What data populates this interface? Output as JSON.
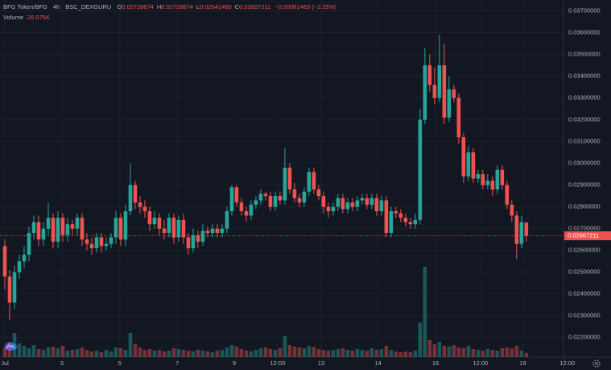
{
  "chart_data": {
    "type": "candlestick",
    "symbol": "BFG Token/BFG",
    "interval": "4h",
    "exchange": "BSC_DEXGURU",
    "ohlc_letters": [
      "O",
      "H",
      "L",
      "C"
    ],
    "last_labels": [
      "0.02728674",
      "0.02728674",
      "0.02641460",
      "0.02667211"
    ],
    "change_label": "−0.00061463 (−2.25%)",
    "up_color": "#26a69a",
    "down_color": "#ef5350",
    "grid": true,
    "ylim": [
      0.0211,
      0.0375
    ],
    "yticks": [
      {
        "value": 0.022,
        "label": "0.02200000"
      },
      {
        "value": 0.023,
        "label": "0.02300000"
      },
      {
        "value": 0.024,
        "label": "0.02400000"
      },
      {
        "value": 0.025,
        "label": "0.02500000"
      },
      {
        "value": 0.026,
        "label": "0.02600000"
      },
      {
        "value": 0.027,
        "label": "0.02700000"
      },
      {
        "value": 0.028,
        "label": "0.02800000"
      },
      {
        "value": 0.029,
        "label": "0.02900000"
      },
      {
        "value": 0.03,
        "label": "0.03000000"
      },
      {
        "value": 0.031,
        "label": "0.03100000"
      },
      {
        "value": 0.032,
        "label": "0.03200000"
      },
      {
        "value": 0.033,
        "label": "0.03300000"
      },
      {
        "value": 0.034,
        "label": "0.03400000"
      },
      {
        "value": 0.035,
        "label": "0.03500000"
      },
      {
        "value": 0.036,
        "label": "0.03600000"
      },
      {
        "value": 0.037,
        "label": "0.03700000"
      }
    ],
    "xlim": [
      -1,
      115.7
    ],
    "xticks": [
      {
        "value": 0,
        "label": "Jul"
      },
      {
        "value": 11.8,
        "label": "3"
      },
      {
        "value": 23.8,
        "label": "5"
      },
      {
        "value": 35.7,
        "label": "7"
      },
      {
        "value": 47.5,
        "label": "9"
      },
      {
        "value": 56.5,
        "label": "12:00"
      },
      {
        "value": 65.5,
        "label": "13"
      },
      {
        "value": 77.3,
        "label": "14"
      },
      {
        "value": 89.2,
        "label": "16"
      },
      {
        "value": 98.5,
        "label": "12:00"
      },
      {
        "value": 107.3,
        "label": "19"
      },
      {
        "value": 116.5,
        "label": "12:00"
      }
    ],
    "open": [
      0.0262,
      0.0248,
      0.0236,
      0.025,
      0.0255,
      0.0258,
      0.0268,
      0.0273,
      0.0265,
      0.027,
      0.0275,
      0.0264,
      0.0275,
      0.0267,
      0.0272,
      0.027,
      0.0275,
      0.0265,
      0.0263,
      0.0261,
      0.0266,
      0.0262,
      0.0263,
      0.0266,
      0.0275,
      0.0265,
      0.0278,
      0.029,
      0.0282,
      0.028,
      0.0278,
      0.0272,
      0.0275,
      0.027,
      0.0268,
      0.0275,
      0.0266,
      0.0274,
      0.0266,
      0.0261,
      0.0267,
      0.0264,
      0.0269,
      0.0268,
      0.027,
      0.0268,
      0.027,
      0.0278,
      0.0289,
      0.0282,
      0.0278,
      0.0276,
      0.0281,
      0.0283,
      0.0286,
      0.0285,
      0.028,
      0.0285,
      0.0283,
      0.0298,
      0.0288,
      0.0284,
      0.0282,
      0.0287,
      0.0296,
      0.0288,
      0.0285,
      0.028,
      0.0278,
      0.028,
      0.0284,
      0.0279,
      0.0282,
      0.028,
      0.0283,
      0.0284,
      0.0281,
      0.0284,
      0.0278,
      0.0283,
      0.0268,
      0.0278,
      0.0277,
      0.0275,
      0.0273,
      0.0272,
      0.0274,
      0.032,
      0.0345,
      0.0336,
      0.033,
      0.0345,
      0.0321,
      0.0334,
      0.033,
      0.0312,
      0.0294,
      0.0305,
      0.0293,
      0.0295,
      0.029,
      0.0292,
      0.0288,
      0.0297,
      0.029,
      0.0281,
      0.0276,
      0.0263,
      0.02728674
    ],
    "high": [
      0.0265,
      0.0251,
      0.0253,
      0.0258,
      0.0262,
      0.0271,
      0.0276,
      0.0276,
      0.0273,
      0.0282,
      0.0277,
      0.0278,
      0.0277,
      0.0275,
      0.0274,
      0.0277,
      0.0277,
      0.0268,
      0.0266,
      0.0268,
      0.0268,
      0.0266,
      0.0268,
      0.0278,
      0.0277,
      0.0281,
      0.03,
      0.0292,
      0.0285,
      0.0283,
      0.028,
      0.0278,
      0.0277,
      0.0274,
      0.0277,
      0.0277,
      0.0276,
      0.0277,
      0.0268,
      0.027,
      0.0269,
      0.0272,
      0.0271,
      0.0272,
      0.0272,
      0.0272,
      0.028,
      0.029,
      0.029,
      0.0284,
      0.028,
      0.0283,
      0.0285,
      0.0288,
      0.0287,
      0.0287,
      0.0287,
      0.0287,
      0.0307,
      0.03,
      0.0291,
      0.0286,
      0.0289,
      0.0298,
      0.0298,
      0.029,
      0.0287,
      0.0282,
      0.0282,
      0.0286,
      0.0286,
      0.0284,
      0.0284,
      0.0285,
      0.0286,
      0.0286,
      0.0286,
      0.0286,
      0.0285,
      0.0285,
      0.028,
      0.028,
      0.0279,
      0.0277,
      0.0275,
      0.0277,
      0.0325,
      0.0353,
      0.035,
      0.0344,
      0.0359,
      0.0355,
      0.034,
      0.0336,
      0.0332,
      0.0314,
      0.0308,
      0.0307,
      0.0297,
      0.0297,
      0.0295,
      0.0294,
      0.0299,
      0.0299,
      0.0292,
      0.0283,
      0.0278,
      0.0276,
      0.02728674
    ],
    "low": [
      0.0242,
      0.0228,
      0.0233,
      0.0247,
      0.0252,
      0.0255,
      0.0265,
      0.0262,
      0.0262,
      0.0267,
      0.0261,
      0.0261,
      0.0264,
      0.0264,
      0.0267,
      0.0267,
      0.0262,
      0.026,
      0.0258,
      0.0259,
      0.0259,
      0.026,
      0.0261,
      0.0263,
      0.0262,
      0.0262,
      0.0276,
      0.0279,
      0.0277,
      0.0275,
      0.0269,
      0.027,
      0.0267,
      0.0265,
      0.0266,
      0.0263,
      0.0264,
      0.0263,
      0.0258,
      0.0259,
      0.0261,
      0.0262,
      0.0266,
      0.0266,
      0.0266,
      0.0266,
      0.0268,
      0.0276,
      0.028,
      0.0276,
      0.0273,
      0.0274,
      0.0279,
      0.0281,
      0.0283,
      0.0278,
      0.0278,
      0.0281,
      0.0281,
      0.0286,
      0.0282,
      0.028,
      0.028,
      0.0285,
      0.0286,
      0.0283,
      0.0277,
      0.0275,
      0.0276,
      0.0278,
      0.0277,
      0.0277,
      0.0278,
      0.0278,
      0.0281,
      0.0279,
      0.0279,
      0.0276,
      0.0276,
      0.0266,
      0.0266,
      0.0275,
      0.0273,
      0.0271,
      0.027,
      0.027,
      0.0272,
      0.0318,
      0.0333,
      0.0327,
      0.0328,
      0.0318,
      0.0319,
      0.0328,
      0.0309,
      0.0291,
      0.0292,
      0.0291,
      0.0291,
      0.0288,
      0.0288,
      0.0285,
      0.0286,
      0.0288,
      0.0279,
      0.0273,
      0.0256,
      0.0261,
      0.0264146
    ],
    "close": [
      0.0248,
      0.0236,
      0.025,
      0.0255,
      0.0258,
      0.0268,
      0.0273,
      0.0265,
      0.027,
      0.0275,
      0.0264,
      0.0275,
      0.0267,
      0.0272,
      0.027,
      0.0275,
      0.0265,
      0.0263,
      0.0261,
      0.0266,
      0.0262,
      0.0263,
      0.0266,
      0.0275,
      0.0265,
      0.0278,
      0.029,
      0.0282,
      0.028,
      0.0278,
      0.0272,
      0.0275,
      0.027,
      0.0268,
      0.0275,
      0.0266,
      0.0274,
      0.0266,
      0.0261,
      0.0267,
      0.0264,
      0.0269,
      0.0268,
      0.027,
      0.0268,
      0.027,
      0.0278,
      0.0289,
      0.0282,
      0.0278,
      0.0276,
      0.0281,
      0.0283,
      0.0286,
      0.0285,
      0.028,
      0.0285,
      0.0283,
      0.0298,
      0.0288,
      0.0284,
      0.0282,
      0.0287,
      0.0296,
      0.0288,
      0.0285,
      0.028,
      0.0278,
      0.028,
      0.0284,
      0.0279,
      0.0282,
      0.028,
      0.0283,
      0.0284,
      0.0281,
      0.0284,
      0.0278,
      0.0283,
      0.0268,
      0.0278,
      0.0277,
      0.0275,
      0.0273,
      0.0272,
      0.0274,
      0.032,
      0.0345,
      0.0336,
      0.033,
      0.0345,
      0.0321,
      0.0334,
      0.033,
      0.0312,
      0.0294,
      0.0305,
      0.0293,
      0.0295,
      0.029,
      0.0292,
      0.0288,
      0.0297,
      0.029,
      0.0281,
      0.0276,
      0.0263,
      0.0273,
      0.02667211
    ],
    "volume": {
      "name": "Volume",
      "last_label": "26.075K",
      "vlim": [
        0,
        600000
      ],
      "values": [
        60000,
        95000,
        150000,
        85000,
        70000,
        55000,
        75000,
        50000,
        45000,
        60000,
        65000,
        55000,
        70000,
        40000,
        45000,
        50000,
        60000,
        45000,
        35000,
        40000,
        30000,
        45000,
        35000,
        60000,
        55000,
        45000,
        150000,
        80000,
        60000,
        45000,
        50000,
        40000,
        45000,
        35000,
        40000,
        55000,
        50000,
        45000,
        40000,
        35000,
        45000,
        40000,
        35000,
        30000,
        40000,
        45000,
        60000,
        75000,
        65000,
        50000,
        40000,
        35000,
        45000,
        55000,
        60000,
        50000,
        45000,
        55000,
        130000,
        75000,
        65000,
        60000,
        55000,
        70000,
        65000,
        50000,
        45000,
        40000,
        45000,
        50000,
        55000,
        45000,
        40000,
        50000,
        45000,
        40000,
        55000,
        45000,
        50000,
        70000,
        45000,
        35000,
        30000,
        35000,
        30000,
        40000,
        215000,
        560000,
        105000,
        80000,
        95000,
        70000,
        65000,
        75000,
        60000,
        55000,
        70000,
        50000,
        45000,
        40000,
        50000,
        45000,
        40000,
        55000,
        60000,
        55000,
        70000,
        40000,
        26075
      ]
    }
  }
}
